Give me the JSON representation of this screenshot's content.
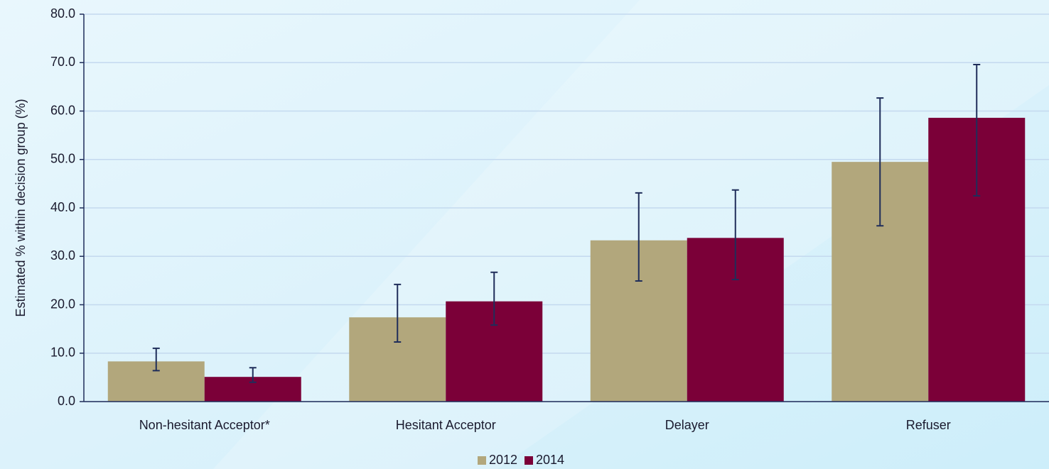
{
  "chart_data": {
    "type": "bar",
    "y_label": "Estimated % within decision group (%)",
    "categories": [
      "Non-hesitant Acceptor*",
      "Hesitant Acceptor",
      "Delayer",
      "Refuser"
    ],
    "series": [
      {
        "name": "2012",
        "color": "#b2a77c",
        "values": [
          8.3,
          17.4,
          33.3,
          49.5
        ],
        "lower": [
          6.4,
          12.3,
          24.9,
          36.3
        ],
        "upper": [
          11.0,
          24.2,
          43.1,
          62.7
        ]
      },
      {
        "name": "2014",
        "color": "#7b0038",
        "values": [
          5.1,
          20.7,
          33.8,
          58.6
        ],
        "lower": [
          4.0,
          15.8,
          25.2,
          42.5
        ],
        "upper": [
          7.0,
          26.7,
          43.7,
          69.6
        ]
      }
    ],
    "ylim": [
      0,
      80
    ],
    "yticks": [
      {
        "value": 0,
        "label": "0.0"
      },
      {
        "value": 10,
        "label": "10.0"
      },
      {
        "value": 20,
        "label": "20.0"
      },
      {
        "value": 30,
        "label": "30.0"
      },
      {
        "value": 40,
        "label": "40.0"
      },
      {
        "value": 50,
        "label": "50.0"
      },
      {
        "value": 60,
        "label": "60.0"
      },
      {
        "value": 70,
        "label": "70.0"
      },
      {
        "value": 80,
        "label": "80.0"
      }
    ],
    "grid": true,
    "error_color": "#1f2d5a",
    "legend": "bottom"
  }
}
